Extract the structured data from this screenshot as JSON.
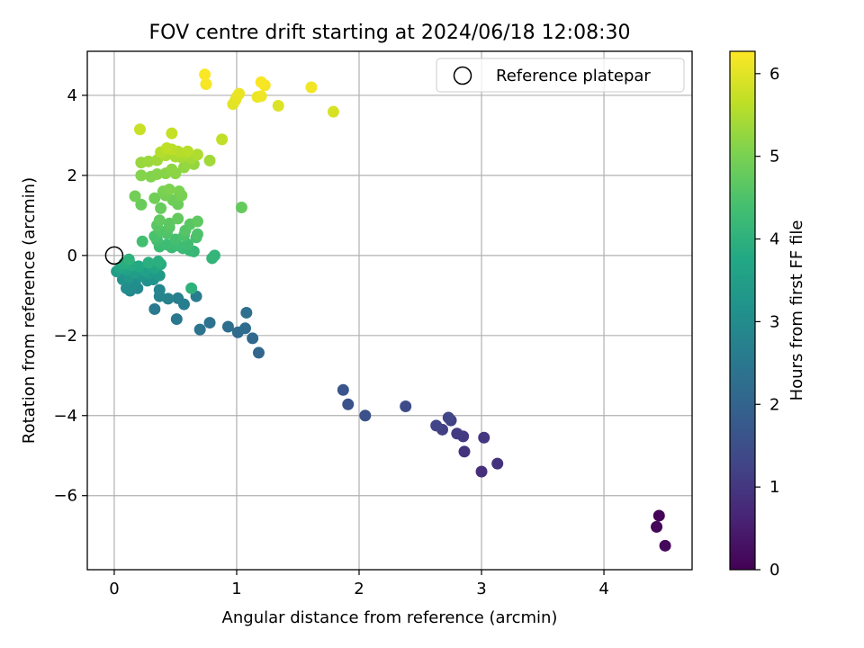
{
  "chart_data": {
    "type": "scatter",
    "title": "FOV centre drift starting at 2024/06/18 12:08:30",
    "xlabel": "Angular distance from reference (arcmin)",
    "ylabel": "Rotation from reference (arcmin)",
    "xlim": [
      -0.22,
      4.72
    ],
    "ylim": [
      -7.85,
      5.1
    ],
    "x_ticks": [
      "0",
      "1",
      "2",
      "3",
      "4"
    ],
    "y_ticks": [
      "−6",
      "−4",
      "−2",
      "0",
      "2",
      "4"
    ],
    "grid": true,
    "colormap": "viridis",
    "colorbar": {
      "label": "Hours from first FF file",
      "range": [
        0,
        6.27
      ],
      "ticks": [
        "0",
        "1",
        "2",
        "3",
        "4",
        "5",
        "6"
      ]
    },
    "legend": {
      "position": "top-right",
      "entries": [
        "Reference platepar"
      ]
    },
    "reference_point": [
      0,
      0
    ],
    "points": [
      {
        "x": 4.45,
        "y": -6.5,
        "t": 0.05
      },
      {
        "x": 4.43,
        "y": -6.78,
        "t": 0.1
      },
      {
        "x": 4.5,
        "y": -7.25,
        "t": 0.15
      },
      {
        "x": 3.0,
        "y": -5.4,
        "t": 0.85
      },
      {
        "x": 3.13,
        "y": -5.2,
        "t": 0.9
      },
      {
        "x": 2.86,
        "y": -4.9,
        "t": 0.95
      },
      {
        "x": 3.02,
        "y": -4.55,
        "t": 1.0
      },
      {
        "x": 2.85,
        "y": -4.52,
        "t": 1.05
      },
      {
        "x": 2.8,
        "y": -4.45,
        "t": 1.1
      },
      {
        "x": 2.68,
        "y": -4.35,
        "t": 1.15
      },
      {
        "x": 2.75,
        "y": -4.12,
        "t": 1.2
      },
      {
        "x": 2.63,
        "y": -4.25,
        "t": 1.25
      },
      {
        "x": 2.73,
        "y": -4.05,
        "t": 1.3
      },
      {
        "x": 2.38,
        "y": -3.77,
        "t": 1.45
      },
      {
        "x": 2.05,
        "y": -4.0,
        "t": 1.55
      },
      {
        "x": 1.91,
        "y": -3.72,
        "t": 1.6
      },
      {
        "x": 1.87,
        "y": -3.36,
        "t": 1.65
      },
      {
        "x": 1.18,
        "y": -2.43,
        "t": 2.05
      },
      {
        "x": 1.13,
        "y": -2.07,
        "t": 2.1
      },
      {
        "x": 1.01,
        "y": -1.92,
        "t": 2.15
      },
      {
        "x": 1.07,
        "y": -1.82,
        "t": 2.2
      },
      {
        "x": 0.93,
        "y": -1.78,
        "t": 2.25
      },
      {
        "x": 1.08,
        "y": -1.43,
        "t": 2.3
      },
      {
        "x": 0.78,
        "y": -1.68,
        "t": 2.35
      },
      {
        "x": 0.7,
        "y": -1.85,
        "t": 2.4
      },
      {
        "x": 0.51,
        "y": -1.59,
        "t": 2.5
      },
      {
        "x": 0.33,
        "y": -1.34,
        "t": 2.55
      },
      {
        "x": 0.67,
        "y": -1.02,
        "t": 2.6
      },
      {
        "x": 0.57,
        "y": -1.22,
        "t": 2.65
      },
      {
        "x": 0.52,
        "y": -1.07,
        "t": 2.7
      },
      {
        "x": 0.44,
        "y": -1.08,
        "t": 2.75
      },
      {
        "x": 0.37,
        "y": -1.02,
        "t": 2.8
      },
      {
        "x": 0.37,
        "y": -0.86,
        "t": 2.85
      },
      {
        "x": 0.13,
        "y": -0.88,
        "t": 2.9
      },
      {
        "x": 0.19,
        "y": -0.82,
        "t": 2.95
      },
      {
        "x": 0.1,
        "y": -0.82,
        "t": 3.0
      },
      {
        "x": 0.17,
        "y": -0.68,
        "t": 3.05
      },
      {
        "x": 0.27,
        "y": -0.63,
        "t": 3.1
      },
      {
        "x": 0.07,
        "y": -0.6,
        "t": 3.15
      },
      {
        "x": 0.32,
        "y": -0.6,
        "t": 3.2
      },
      {
        "x": 0.22,
        "y": -0.52,
        "t": 3.25
      },
      {
        "x": 0.12,
        "y": -0.55,
        "t": 3.3
      },
      {
        "x": 0.37,
        "y": -0.5,
        "t": 3.35
      },
      {
        "x": 0.28,
        "y": -0.45,
        "t": 3.4
      },
      {
        "x": 0.17,
        "y": -0.43,
        "t": 3.45
      },
      {
        "x": 0.02,
        "y": -0.4,
        "t": 3.5
      },
      {
        "x": 0.25,
        "y": -0.38,
        "t": 3.55
      },
      {
        "x": 0.1,
        "y": -0.35,
        "t": 3.6
      },
      {
        "x": 0.33,
        "y": -0.32,
        "t": 3.65
      },
      {
        "x": 0.05,
        "y": -0.3,
        "t": 3.7
      },
      {
        "x": 0.2,
        "y": -0.27,
        "t": 3.75
      },
      {
        "x": 0.14,
        "y": -0.25,
        "t": 3.8
      },
      {
        "x": 0.38,
        "y": -0.22,
        "t": 3.85
      },
      {
        "x": 0.08,
        "y": -0.2,
        "t": 3.9
      },
      {
        "x": 0.28,
        "y": -0.18,
        "t": 3.95
      },
      {
        "x": 0.12,
        "y": -0.1,
        "t": 4.0
      },
      {
        "x": 0.36,
        "y": -0.15,
        "t": 3.95
      },
      {
        "x": 0.63,
        "y": -0.82,
        "t": 4.0
      },
      {
        "x": 0.8,
        "y": -0.07,
        "t": 4.1
      },
      {
        "x": 0.82,
        "y": 0.0,
        "t": 4.12
      },
      {
        "x": 0.65,
        "y": 0.1,
        "t": 4.15
      },
      {
        "x": 0.62,
        "y": 0.12,
        "t": 4.17
      },
      {
        "x": 0.56,
        "y": 0.18,
        "t": 4.2
      },
      {
        "x": 0.47,
        "y": 0.2,
        "t": 4.22
      },
      {
        "x": 0.37,
        "y": 0.22,
        "t": 4.25
      },
      {
        "x": 0.52,
        "y": 0.25,
        "t": 4.27
      },
      {
        "x": 0.43,
        "y": 0.27,
        "t": 4.3
      },
      {
        "x": 0.6,
        "y": 0.28,
        "t": 4.32
      },
      {
        "x": 0.23,
        "y": 0.35,
        "t": 4.35
      },
      {
        "x": 0.35,
        "y": 0.38,
        "t": 4.37
      },
      {
        "x": 0.5,
        "y": 0.4,
        "t": 4.4
      },
      {
        "x": 0.67,
        "y": 0.45,
        "t": 4.42
      },
      {
        "x": 0.33,
        "y": 0.48,
        "t": 4.45
      },
      {
        "x": 0.57,
        "y": 0.5,
        "t": 4.47
      },
      {
        "x": 0.68,
        "y": 0.53,
        "t": 4.5
      },
      {
        "x": 0.43,
        "y": 0.55,
        "t": 4.52
      },
      {
        "x": 0.38,
        "y": 0.6,
        "t": 4.55
      },
      {
        "x": 0.58,
        "y": 0.62,
        "t": 4.57
      },
      {
        "x": 0.45,
        "y": 0.7,
        "t": 4.6
      },
      {
        "x": 0.35,
        "y": 0.75,
        "t": 4.62
      },
      {
        "x": 0.62,
        "y": 0.78,
        "t": 4.65
      },
      {
        "x": 0.45,
        "y": 0.8,
        "t": 4.67
      },
      {
        "x": 0.68,
        "y": 0.85,
        "t": 4.7
      },
      {
        "x": 0.37,
        "y": 0.88,
        "t": 4.72
      },
      {
        "x": 0.52,
        "y": 0.92,
        "t": 4.75
      },
      {
        "x": 1.04,
        "y": 1.2,
        "t": 4.77
      },
      {
        "x": 0.38,
        "y": 1.18,
        "t": 4.8
      },
      {
        "x": 0.22,
        "y": 1.27,
        "t": 4.82
      },
      {
        "x": 0.52,
        "y": 1.28,
        "t": 4.85
      },
      {
        "x": 0.48,
        "y": 1.38,
        "t": 4.87
      },
      {
        "x": 0.33,
        "y": 1.43,
        "t": 4.9
      },
      {
        "x": 0.17,
        "y": 1.48,
        "t": 4.92
      },
      {
        "x": 0.42,
        "y": 1.5,
        "t": 4.95
      },
      {
        "x": 0.55,
        "y": 1.5,
        "t": 4.97
      },
      {
        "x": 0.4,
        "y": 1.6,
        "t": 5.0
      },
      {
        "x": 0.53,
        "y": 1.6,
        "t": 5.02
      },
      {
        "x": 0.45,
        "y": 1.65,
        "t": 5.05
      },
      {
        "x": 0.3,
        "y": 1.97,
        "t": 5.08
      },
      {
        "x": 0.22,
        "y": 2.0,
        "t": 5.1
      },
      {
        "x": 0.35,
        "y": 2.03,
        "t": 5.12
      },
      {
        "x": 0.42,
        "y": 2.05,
        "t": 5.15
      },
      {
        "x": 0.5,
        "y": 2.05,
        "t": 5.17
      },
      {
        "x": 0.47,
        "y": 2.15,
        "t": 5.2
      },
      {
        "x": 0.57,
        "y": 2.2,
        "t": 5.22
      },
      {
        "x": 0.65,
        "y": 2.28,
        "t": 5.25
      },
      {
        "x": 0.6,
        "y": 2.3,
        "t": 5.27
      },
      {
        "x": 0.22,
        "y": 2.32,
        "t": 5.3
      },
      {
        "x": 0.28,
        "y": 2.35,
        "t": 5.32
      },
      {
        "x": 0.35,
        "y": 2.38,
        "t": 5.35
      },
      {
        "x": 0.78,
        "y": 2.37,
        "t": 5.37
      },
      {
        "x": 0.63,
        "y": 2.42,
        "t": 5.4
      },
      {
        "x": 0.55,
        "y": 2.45,
        "t": 5.42
      },
      {
        "x": 0.5,
        "y": 2.47,
        "t": 5.45
      },
      {
        "x": 0.42,
        "y": 2.5,
        "t": 5.47
      },
      {
        "x": 0.68,
        "y": 2.52,
        "t": 5.5
      },
      {
        "x": 0.58,
        "y": 2.55,
        "t": 5.52
      },
      {
        "x": 0.38,
        "y": 2.58,
        "t": 5.55
      },
      {
        "x": 0.52,
        "y": 2.6,
        "t": 5.57
      },
      {
        "x": 0.6,
        "y": 2.6,
        "t": 5.6
      },
      {
        "x": 0.47,
        "y": 2.65,
        "t": 5.62
      },
      {
        "x": 0.43,
        "y": 2.68,
        "t": 5.65
      },
      {
        "x": 0.88,
        "y": 2.9,
        "t": 5.68
      },
      {
        "x": 0.47,
        "y": 3.05,
        "t": 5.72
      },
      {
        "x": 0.21,
        "y": 3.15,
        "t": 5.75
      },
      {
        "x": 1.79,
        "y": 3.59,
        "t": 5.9
      },
      {
        "x": 1.34,
        "y": 3.74,
        "t": 5.95
      },
      {
        "x": 0.97,
        "y": 3.78,
        "t": 6.0
      },
      {
        "x": 0.99,
        "y": 3.88,
        "t": 6.02
      },
      {
        "x": 1.0,
        "y": 3.96,
        "t": 6.05
      },
      {
        "x": 1.02,
        "y": 4.04,
        "t": 6.07
      },
      {
        "x": 1.17,
        "y": 3.96,
        "t": 6.1
      },
      {
        "x": 1.2,
        "y": 3.98,
        "t": 6.12
      },
      {
        "x": 1.61,
        "y": 4.2,
        "t": 6.15
      },
      {
        "x": 1.23,
        "y": 4.25,
        "t": 6.18
      },
      {
        "x": 0.75,
        "y": 4.28,
        "t": 6.2
      },
      {
        "x": 1.2,
        "y": 4.33,
        "t": 6.22
      },
      {
        "x": 0.74,
        "y": 4.52,
        "t": 6.25
      }
    ]
  }
}
